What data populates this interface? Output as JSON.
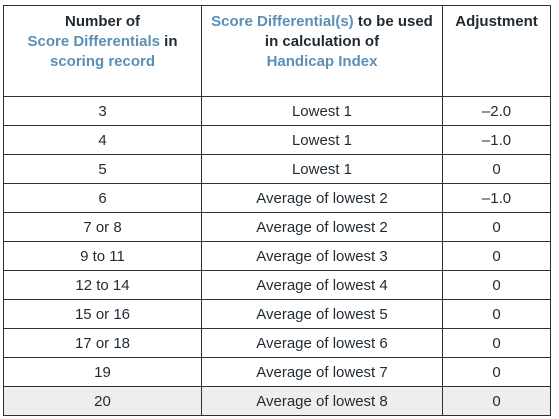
{
  "table": {
    "headers": {
      "col1": {
        "line1": "Number of",
        "line2_highlight": "Score Differentials",
        "line2_rest": " in",
        "line3_highlight": "scoring record"
      },
      "col2": {
        "line1_highlight": "Score Differential(s)",
        "line1_rest": " to be used",
        "line2": "in calculation of",
        "line3_highlight": "Handicap Index"
      },
      "col3": {
        "line1": "Adjustment"
      }
    },
    "rows": [
      {
        "count": "3",
        "differentials": "Lowest 1",
        "adjustment": "–2.0"
      },
      {
        "count": "4",
        "differentials": "Lowest 1",
        "adjustment": "–1.0"
      },
      {
        "count": "5",
        "differentials": "Lowest 1",
        "adjustment": "0"
      },
      {
        "count": "6",
        "differentials": "Average of lowest 2",
        "adjustment": "–1.0"
      },
      {
        "count": "7 or 8",
        "differentials": "Average of lowest 2",
        "adjustment": "0"
      },
      {
        "count": "9 to 11",
        "differentials": "Average of lowest 3",
        "adjustment": "0"
      },
      {
        "count": "12 to 14",
        "differentials": "Average of lowest 4",
        "adjustment": "0"
      },
      {
        "count": "15 or 16",
        "differentials": "Average of lowest 5",
        "adjustment": "0"
      },
      {
        "count": "17 or 18",
        "differentials": "Average of lowest 6",
        "adjustment": "0"
      },
      {
        "count": "19",
        "differentials": "Average of lowest 7",
        "adjustment": "0"
      },
      {
        "count": "20",
        "differentials": "Average of lowest 8",
        "adjustment": "0"
      }
    ],
    "colors": {
      "highlight": "#5b8fb6",
      "text": "#1f2a33",
      "last_row_shade": "#eeeeee"
    }
  }
}
